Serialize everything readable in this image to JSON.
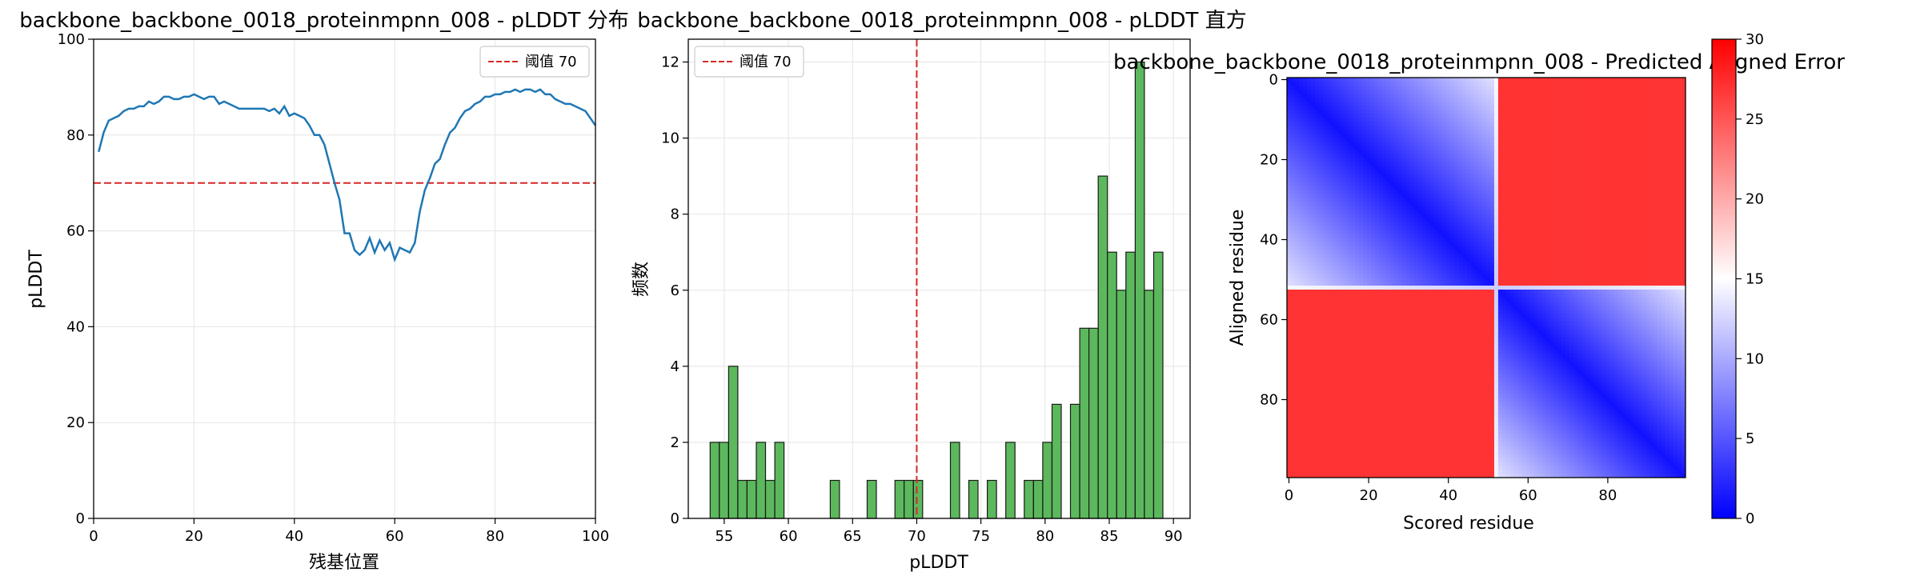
{
  "chart_data": [
    {
      "type": "line",
      "title": "backbone_backbone_0018_proteinmpnn_008 - pLDDT 分布",
      "xlabel": "残基位置",
      "ylabel": "pLDDT",
      "xlim": [
        0,
        100
      ],
      "ylim": [
        0,
        100
      ],
      "xticks": [
        "0",
        "20",
        "40",
        "60",
        "80",
        "100"
      ],
      "yticks": [
        "0",
        "20",
        "40",
        "60",
        "80",
        "100"
      ],
      "grid": true,
      "legend_position": "top-right",
      "threshold": {
        "value": 70,
        "label": "阈值 70",
        "color": "#d62728"
      },
      "line_color": "#1f77b4",
      "x": [
        1,
        2,
        3,
        4,
        5,
        6,
        7,
        8,
        9,
        10,
        11,
        12,
        13,
        14,
        15,
        16,
        17,
        18,
        19,
        20,
        21,
        22,
        23,
        24,
        25,
        26,
        27,
        28,
        29,
        30,
        31,
        32,
        33,
        34,
        35,
        36,
        37,
        38,
        39,
        40,
        41,
        42,
        43,
        44,
        45,
        46,
        47,
        48,
        49,
        50,
        51,
        52,
        53,
        54,
        55,
        56,
        57,
        58,
        59,
        60,
        61,
        62,
        63,
        64,
        65,
        66,
        67,
        68,
        69,
        70,
        71,
        72,
        73,
        74,
        75,
        76,
        77,
        78,
        79,
        80,
        81,
        82,
        83,
        84,
        85,
        86,
        87,
        88,
        89,
        90,
        91,
        92,
        93,
        94,
        95,
        96,
        97,
        98,
        99,
        100
      ],
      "y": [
        76.5,
        80.5,
        83,
        83.5,
        84,
        85,
        85.5,
        85.5,
        86,
        86,
        87,
        86.5,
        87,
        88,
        88,
        87.5,
        87.5,
        88,
        88,
        88.5,
        88,
        87.5,
        88,
        88,
        86.5,
        87,
        86.5,
        86,
        85.5,
        85.5,
        85.5,
        85.5,
        85.5,
        85.5,
        85,
        85.5,
        84.5,
        86,
        84,
        84.5,
        84,
        83.5,
        82,
        80,
        80,
        78,
        74,
        70,
        66.5,
        59.5,
        59.5,
        56,
        55,
        56,
        58.5,
        55.5,
        58,
        56,
        57.5,
        54,
        56.5,
        56,
        55.5,
        57.5,
        64,
        68.5,
        71,
        74,
        75,
        78,
        80.5,
        81.5,
        83.5,
        85,
        85.5,
        86.5,
        87,
        88,
        88,
        88.5,
        88.5,
        89,
        89,
        89.5,
        89,
        89.5,
        89.5,
        89,
        89.5,
        88.5,
        88.5,
        87.5,
        87,
        86.5,
        86.5,
        86,
        85.5,
        85,
        83.5,
        82
      ]
    },
    {
      "type": "bar",
      "title": "backbone_backbone_0018_proteinmpnn_008 - pLDDT 直方",
      "xlabel": "pLDDT",
      "ylabel": "频数",
      "xlim": [
        52.2,
        91.3
      ],
      "ylim": [
        0,
        12.6
      ],
      "xticks": [
        "55",
        "60",
        "65",
        "70",
        "75",
        "80",
        "85",
        "90"
      ],
      "yticks": [
        "0",
        "2",
        "4",
        "6",
        "8",
        "10",
        "12"
      ],
      "grid": true,
      "legend_position": "top-left",
      "threshold": {
        "value": 70,
        "label": "阈值 70",
        "color": "#d62728"
      },
      "bar_color": "#5cb85c",
      "bin_start": 53.9,
      "bin_width": 0.72,
      "counts": [
        2,
        2,
        4,
        1,
        1,
        2,
        1,
        2,
        0,
        0,
        0,
        0,
        0,
        1,
        0,
        0,
        0,
        1,
        0,
        0,
        1,
        1,
        1,
        0,
        0,
        0,
        2,
        0,
        1,
        0,
        1,
        0,
        2,
        0,
        1,
        1,
        2,
        3,
        0,
        3,
        5,
        5,
        9,
        7,
        6,
        7,
        12,
        6,
        7
      ]
    },
    {
      "type": "heatmap",
      "title": "backbone_backbone_0018_proteinmpnn_008 - Predicted Aligned Error",
      "xlabel": "Scored residue",
      "ylabel": "Aligned residue",
      "size": 100,
      "xticks": [
        "0",
        "20",
        "40",
        "60",
        "80"
      ],
      "yticks": [
        "0",
        "20",
        "40",
        "60",
        "80"
      ],
      "colorbar": {
        "min": 0,
        "max": 30,
        "ticks": [
          "0",
          "5",
          "10",
          "15",
          "20",
          "25",
          "30"
        ],
        "colormap": "bwr"
      },
      "domains": [
        {
          "start": 0,
          "end": 51
        },
        {
          "start": 53,
          "end": 99
        }
      ],
      "intra_domain_error": [
        1,
        13
      ],
      "inter_domain_error": 27
    }
  ]
}
